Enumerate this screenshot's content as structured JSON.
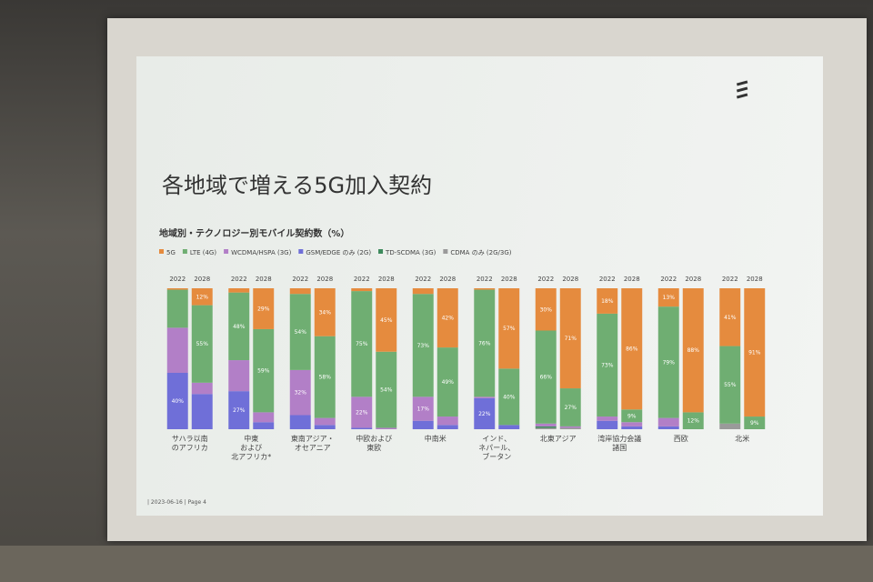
{
  "chart_data": {
    "type": "stacked-bar",
    "title": "各地域で増える5G加入契約",
    "subtitle": "地域別・テクノロジー別モバイル契約数（%）",
    "footer": "| 2023-06-16 | Page 4",
    "groups": [
      "サハラ以南\nのアフリカ",
      "中東\nおよび\n北アフリカ*",
      "東南アジア・\nオセアニア",
      "中欧および\n東欧",
      "中南米",
      "インド、\nネパール、\nブータン",
      "北東アジア",
      "湾岸協力会議\n諸国",
      "西欧",
      "北米"
    ],
    "categories": [
      "2022",
      "2028",
      "2022",
      "2028",
      "2022",
      "2028",
      "2022",
      "2028",
      "2022",
      "2028",
      "2022",
      "2028",
      "2022",
      "2028",
      "2022",
      "2028",
      "2022",
      "2028",
      "2022",
      "2028"
    ],
    "ylim": [
      0,
      100
    ],
    "series": [
      {
        "name": "5G",
        "color": "#e58b3e",
        "values": [
          1,
          12,
          3,
          29,
          4,
          34,
          2,
          45,
          4,
          42,
          1,
          57,
          30,
          71,
          18,
          86,
          13,
          88,
          41,
          91
        ],
        "value_labels": [
          null,
          "12%",
          null,
          "29%",
          null,
          "34%",
          null,
          "45%",
          null,
          "42%",
          null,
          "57%",
          "30%",
          "71%",
          "18%",
          "86%",
          "13%",
          "88%",
          "41%",
          "91%"
        ]
      },
      {
        "name": "LTE (4G)",
        "color": "#6fae72",
        "values": [
          27,
          55,
          48,
          59,
          54,
          58,
          75,
          54,
          73,
          49,
          76,
          40,
          66,
          27,
          73,
          9,
          79,
          12,
          55,
          9
        ],
        "value_labels": [
          null,
          "55%",
          "48%",
          "59%",
          "54%",
          "58%",
          "75%",
          "54%",
          "73%",
          "49%",
          "76%",
          "40%",
          "66%",
          "27%",
          "73%",
          "9%",
          "79%",
          "12%",
          "55%",
          "9%"
        ]
      },
      {
        "name": "WCDMA/HSPA (3G)",
        "color": "#b27fc7",
        "values": [
          32,
          8,
          22,
          7,
          32,
          5,
          22,
          1,
          17,
          6,
          1,
          0,
          2,
          1,
          3,
          3,
          6,
          0,
          0,
          0
        ],
        "value_labels": [
          null,
          null,
          null,
          null,
          "32%",
          null,
          "22%",
          null,
          "17%",
          null,
          null,
          null,
          null,
          null,
          null,
          null,
          null,
          null,
          null,
          null
        ]
      },
      {
        "name": "GSM/EDGE のみ (2G)",
        "color": "#6f6fd8",
        "values": [
          40,
          25,
          27,
          5,
          10,
          3,
          1,
          0,
          6,
          3,
          22,
          3,
          0,
          0,
          6,
          2,
          2,
          0,
          0,
          0
        ],
        "value_labels": [
          "40%",
          null,
          "27%",
          null,
          null,
          null,
          null,
          null,
          null,
          null,
          "22%",
          null,
          null,
          null,
          null,
          null,
          null,
          null,
          null,
          null
        ]
      },
      {
        "name": "TD-SCDMA (3G)",
        "color": "#3d8a5c",
        "values": [
          0,
          0,
          0,
          0,
          0,
          0,
          0,
          0,
          0,
          0,
          0,
          0,
          1,
          0,
          0,
          0,
          0,
          0,
          0,
          0
        ],
        "value_labels": [
          null,
          null,
          null,
          null,
          null,
          null,
          null,
          null,
          null,
          null,
          null,
          null,
          null,
          null,
          null,
          null,
          null,
          null,
          null,
          null
        ]
      },
      {
        "name": "CDMA のみ (2G/3G)",
        "color": "#9a9a9a",
        "values": [
          0,
          0,
          0,
          0,
          0,
          0,
          0,
          0,
          0,
          0,
          0,
          0,
          1,
          1,
          0,
          0,
          0,
          0,
          4,
          0
        ],
        "value_labels": [
          null,
          null,
          null,
          null,
          null,
          null,
          null,
          null,
          null,
          null,
          null,
          null,
          null,
          null,
          null,
          null,
          null,
          null,
          null,
          null
        ]
      }
    ]
  }
}
